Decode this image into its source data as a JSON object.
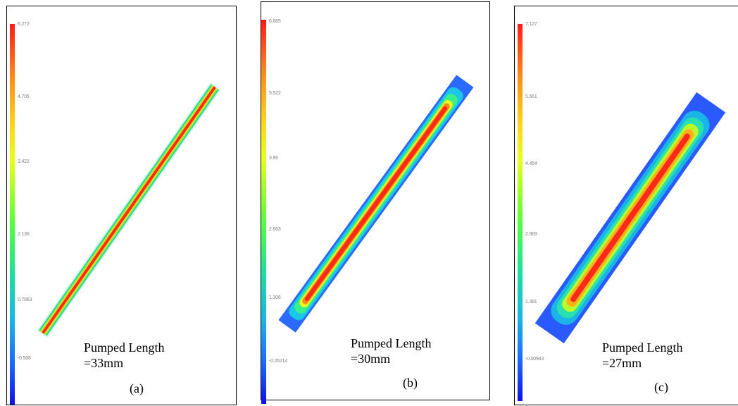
{
  "panels": [
    {
      "id": "a",
      "ticks": [
        "6.272",
        "4.705",
        "3.422",
        "2.136",
        "0.7863",
        "-0.508"
      ],
      "text_line1": "Pumped Length",
      "text_line2": "=33mm",
      "caption": "(a)"
    },
    {
      "id": "b",
      "ticks": [
        "6.885",
        "5.522",
        "3.95",
        "2.663",
        "1.306",
        "-0.05214"
      ],
      "text_line1": "Pumped Length",
      "text_line2": "=30mm",
      "caption": "(b)"
    },
    {
      "id": "c",
      "ticks": [
        "7.127",
        "5.661",
        "4.454",
        "2.969",
        "1.481",
        "-0.00943"
      ],
      "text_line1": "Pumped Length",
      "text_line2": "=27mm",
      "caption": "(c)"
    }
  ],
  "colors": {
    "high": "#ff1a1a",
    "mid": "#5aff3a",
    "low": "#1a3cff"
  }
}
